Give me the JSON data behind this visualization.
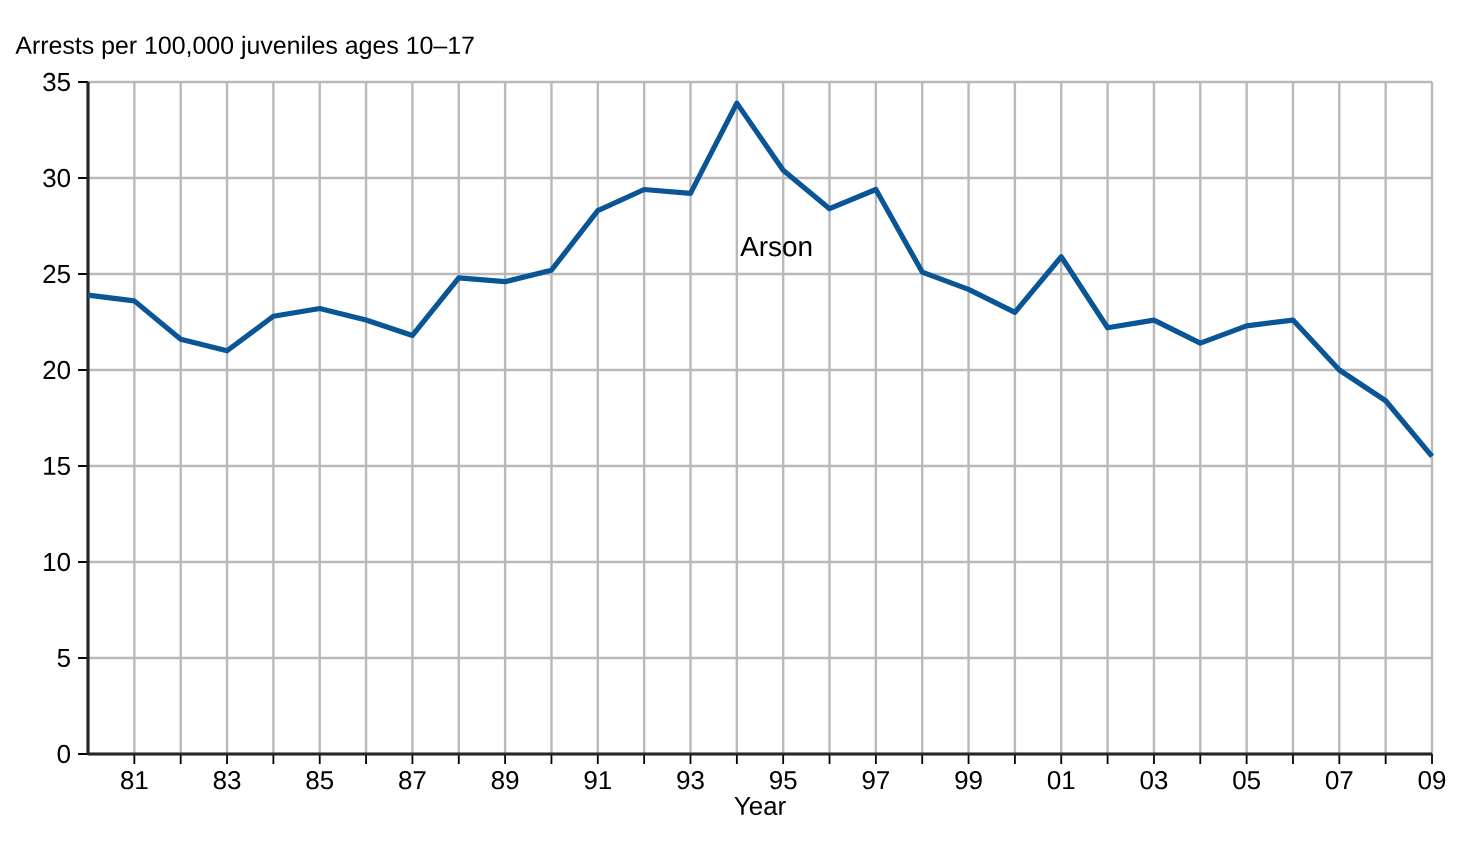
{
  "chart_data": {
    "type": "line",
    "ylabel": "Arrests per 100,000 juveniles ages 10–17",
    "xlabel": "Year",
    "x": [
      1980,
      1981,
      1982,
      1983,
      1984,
      1985,
      1986,
      1987,
      1988,
      1989,
      1990,
      1991,
      1992,
      1993,
      1994,
      1995,
      1996,
      1997,
      1998,
      1999,
      2000,
      2001,
      2002,
      2003,
      2004,
      2005,
      2006,
      2007,
      2008,
      2009
    ],
    "series": [
      {
        "name": "Arson",
        "color": "#0a5596",
        "values": [
          23.9,
          23.6,
          21.6,
          21.0,
          22.8,
          23.2,
          22.6,
          21.8,
          24.8,
          24.6,
          25.2,
          28.3,
          29.4,
          29.2,
          33.9,
          30.4,
          28.4,
          29.4,
          25.1,
          24.2,
          23.0,
          25.9,
          22.2,
          22.6,
          21.4,
          22.3,
          22.6,
          20.0,
          18.4,
          15.5
        ]
      }
    ],
    "xlim": [
      1980,
      2009
    ],
    "ylim": [
      0,
      35
    ],
    "xticks": [
      {
        "value": 1981,
        "label": "81"
      },
      {
        "value": 1982,
        "label": null
      },
      {
        "value": 1983,
        "label": "83"
      },
      {
        "value": 1984,
        "label": null
      },
      {
        "value": 1985,
        "label": "85"
      },
      {
        "value": 1986,
        "label": null
      },
      {
        "value": 1987,
        "label": "87"
      },
      {
        "value": 1988,
        "label": null
      },
      {
        "value": 1989,
        "label": "89"
      },
      {
        "value": 1990,
        "label": null
      },
      {
        "value": 1991,
        "label": "91"
      },
      {
        "value": 1992,
        "label": null
      },
      {
        "value": 1993,
        "label": "93"
      },
      {
        "value": 1994,
        "label": null
      },
      {
        "value": 1995,
        "label": "95"
      },
      {
        "value": 1996,
        "label": null
      },
      {
        "value": 1997,
        "label": "97"
      },
      {
        "value": 1998,
        "label": null
      },
      {
        "value": 1999,
        "label": "99"
      },
      {
        "value": 2000,
        "label": null
      },
      {
        "value": 2001,
        "label": "01"
      },
      {
        "value": 2002,
        "label": null
      },
      {
        "value": 2003,
        "label": "03"
      },
      {
        "value": 2004,
        "label": null
      },
      {
        "value": 2005,
        "label": "05"
      },
      {
        "value": 2006,
        "label": null
      },
      {
        "value": 2007,
        "label": "07"
      },
      {
        "value": 2008,
        "label": null
      },
      {
        "value": 2009,
        "label": "09"
      }
    ],
    "yticks": [
      0,
      5,
      10,
      15,
      20,
      25,
      30,
      35
    ],
    "grid": true,
    "legend": false,
    "marker": "none",
    "line_style": "solid"
  }
}
